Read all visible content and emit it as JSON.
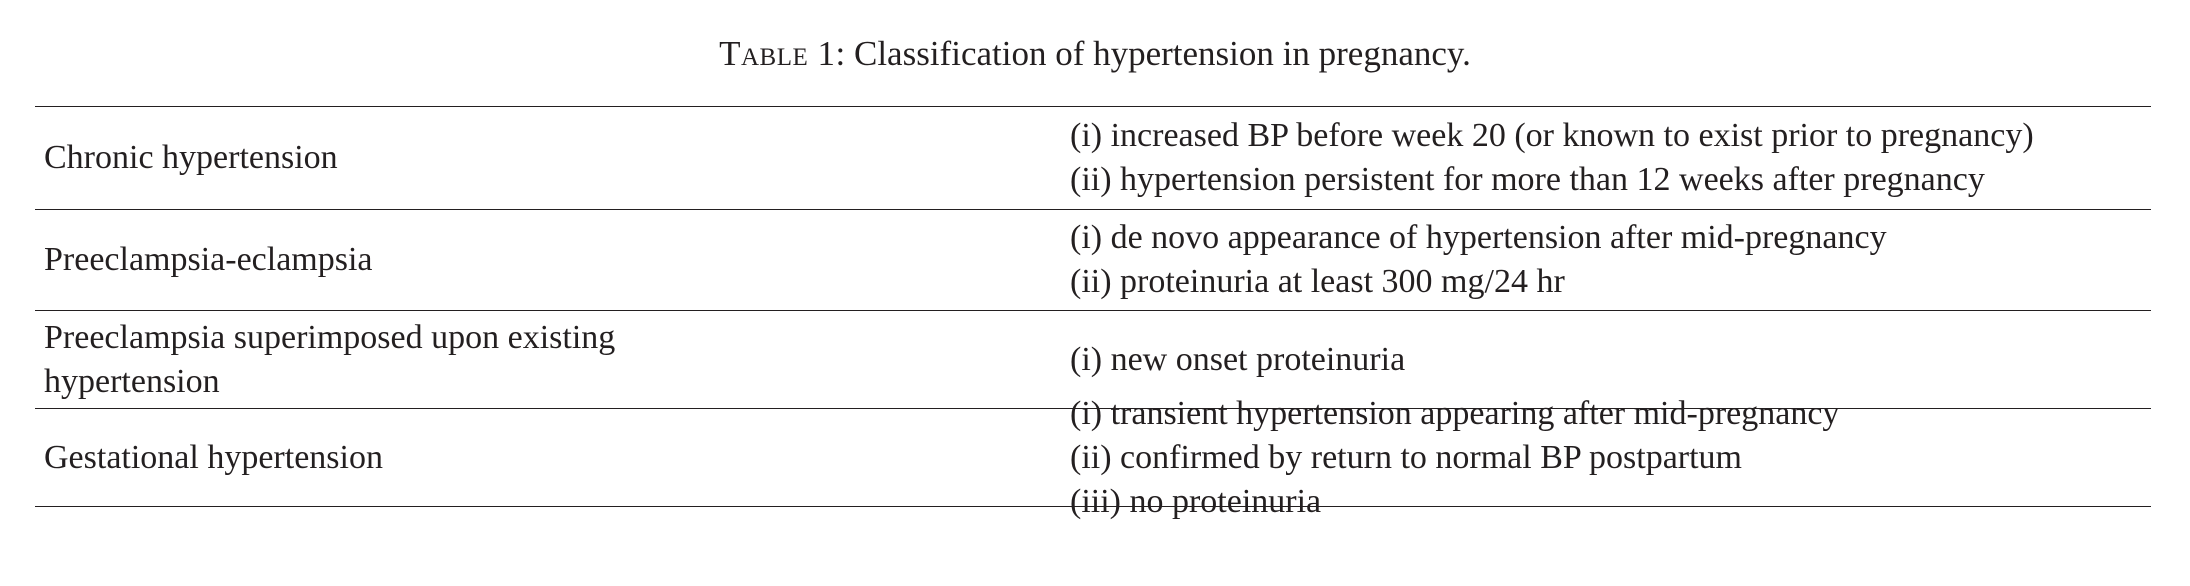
{
  "caption": {
    "label": "Table 1",
    "text": ": Classification of hypertension in pregnancy."
  },
  "rows": [
    {
      "category": [
        "Chronic hypertension"
      ],
      "criteria": [
        "(i) increased BP before week 20 (or known to exist prior to pregnancy)",
        "(ii) hypertension persistent for more than 12 weeks after pregnancy"
      ]
    },
    {
      "category": [
        "Preeclampsia-eclampsia"
      ],
      "criteria": [
        "(i) de novo appearance of hypertension after mid-pregnancy",
        "(ii) proteinuria at least 300 mg/24 hr"
      ]
    },
    {
      "category": [
        "Preeclampsia superimposed upon existing",
        "hypertension"
      ],
      "criteria": [
        "(i) new onset proteinuria"
      ]
    },
    {
      "category": [
        "Gestational hypertension"
      ],
      "criteria": [
        "(i) transient hypertension appearing after mid-pregnancy",
        "(ii) confirmed by return to normal BP postpartum",
        "(iii) no proteinuria"
      ]
    }
  ]
}
